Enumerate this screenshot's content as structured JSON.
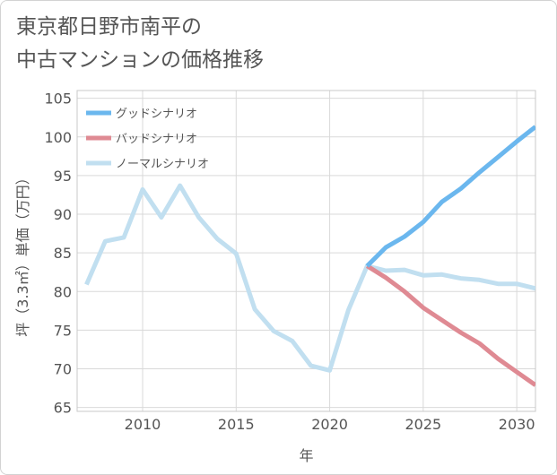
{
  "title_lines": [
    "東京都日野市南平の",
    "中古マンションの価格推移"
  ],
  "colors": {
    "good": "#6bb7ee",
    "bad": "#df8a93",
    "normal": "#c1dff0",
    "axis_text": "#555555",
    "grid": "#d9d9d9"
  },
  "chart_data": {
    "type": "line",
    "xlabel": "年",
    "ylabel": "坪（3.3㎡）単価（万円）",
    "xlim": [
      2006.5,
      2031
    ],
    "ylim": [
      64.5,
      106
    ],
    "x_ticks": [
      2010,
      2015,
      2020,
      2025,
      2030
    ],
    "y_ticks": [
      65,
      70,
      75,
      80,
      85,
      90,
      95,
      100,
      105
    ],
    "grid": "horizontal",
    "legend_position": "top-left",
    "series": [
      {
        "name": "グッドシナリオ",
        "color_key": "good",
        "x": [
          2022,
          2023,
          2024,
          2025,
          2026,
          2027,
          2028,
          2029,
          2030,
          2031
        ],
        "y": [
          83.3,
          85.7,
          87.1,
          89.0,
          91.6,
          93.3,
          95.4,
          97.4,
          99.4,
          101.3
        ]
      },
      {
        "name": "バッドシナリオ",
        "color_key": "bad",
        "x": [
          2022,
          2023,
          2024,
          2025,
          2026,
          2027,
          2028,
          2029,
          2030,
          2031
        ],
        "y": [
          83.3,
          81.8,
          80.0,
          77.9,
          76.3,
          74.7,
          73.3,
          71.3,
          69.6,
          67.9
        ]
      },
      {
        "name": "ノーマルシナリオ",
        "color_key": "normal",
        "x": [
          2007,
          2008,
          2009,
          2010,
          2011,
          2012,
          2013,
          2014,
          2015,
          2016,
          2017,
          2018,
          2019,
          2020,
          2021,
          2022,
          2023,
          2024,
          2025,
          2026,
          2027,
          2028,
          2029,
          2030,
          2031
        ],
        "y": [
          80.9,
          86.5,
          87.0,
          93.2,
          89.6,
          93.7,
          89.6,
          86.8,
          84.9,
          77.7,
          74.9,
          73.6,
          70.4,
          69.8,
          77.6,
          83.3,
          82.7,
          82.8,
          82.1,
          82.2,
          81.7,
          81.5,
          81.0,
          81.0,
          80.4
        ]
      }
    ]
  }
}
